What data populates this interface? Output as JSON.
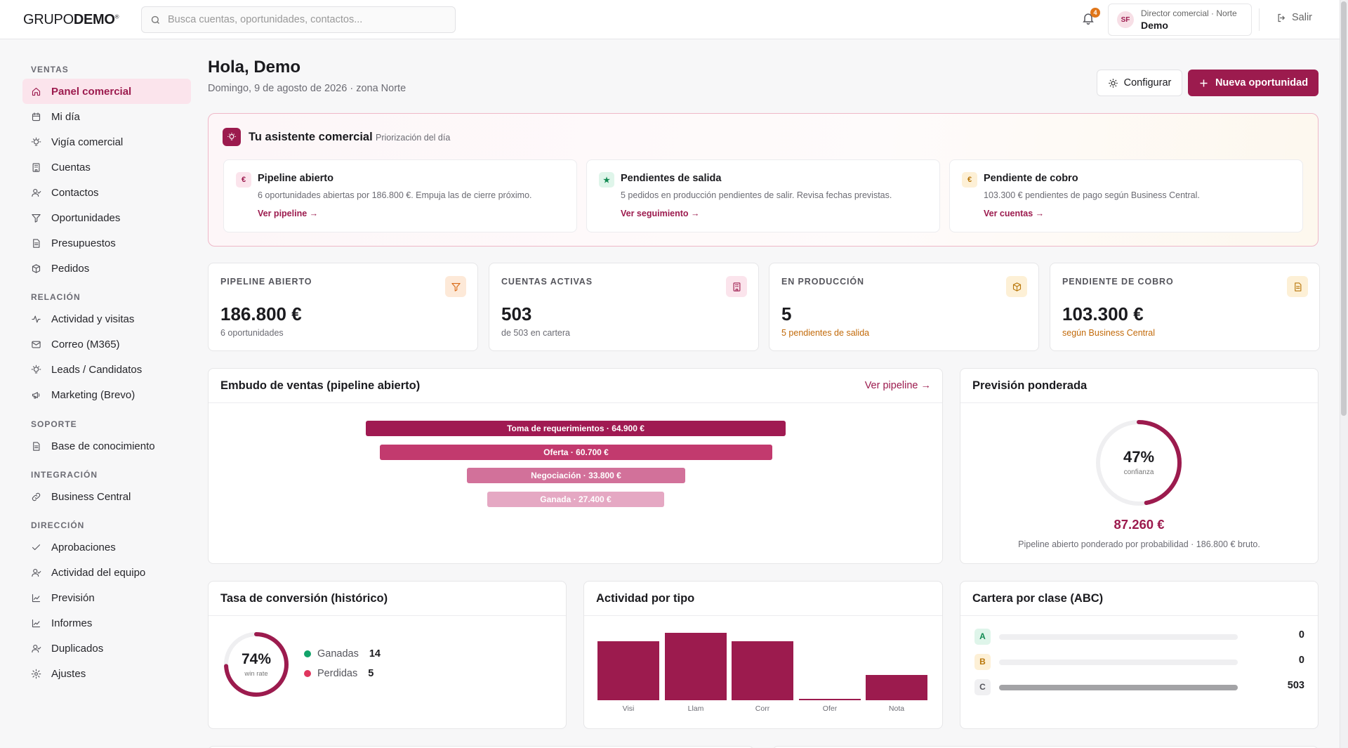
{
  "header": {
    "logo_light": "GRUPO",
    "logo_bold": "DEMO",
    "logo_mark": "®",
    "search_placeholder": "Busca cuentas, oportunidades, contactos...",
    "notifications_count": "4",
    "user_initials": "SF",
    "user_role": "Director comercial · Norte",
    "user_name": "Demo",
    "logout_label": "Salir"
  },
  "sidebar": {
    "sections": [
      {
        "title": "VENTAS",
        "items": [
          {
            "label": "Panel comercial",
            "icon": "home-icon",
            "active": true
          },
          {
            "label": "Mi día",
            "icon": "calendar-icon"
          },
          {
            "label": "Vigía comercial",
            "icon": "lightbulb-icon"
          },
          {
            "label": "Cuentas",
            "icon": "building-icon"
          },
          {
            "label": "Contactos",
            "icon": "user-icon"
          },
          {
            "label": "Oportunidades",
            "icon": "filter-icon"
          },
          {
            "label": "Presupuestos",
            "icon": "document-icon"
          },
          {
            "label": "Pedidos",
            "icon": "box-icon"
          }
        ]
      },
      {
        "title": "RELACIÓN",
        "items": [
          {
            "label": "Actividad y visitas",
            "icon": "activity-icon"
          },
          {
            "label": "Correo (M365)",
            "icon": "mail-icon"
          },
          {
            "label": "Leads / Candidatos",
            "icon": "lightbulb-icon"
          },
          {
            "label": "Marketing (Brevo)",
            "icon": "megaphone-icon"
          }
        ]
      },
      {
        "title": "SOPORTE",
        "items": [
          {
            "label": "Base de conocimiento",
            "icon": "document-icon"
          }
        ]
      },
      {
        "title": "INTEGRACIÓN",
        "items": [
          {
            "label": "Business Central",
            "icon": "link-icon"
          }
        ]
      },
      {
        "title": "DIRECCIÓN",
        "items": [
          {
            "label": "Aprobaciones",
            "icon": "check-icon"
          },
          {
            "label": "Actividad del equipo",
            "icon": "user-icon"
          },
          {
            "label": "Previsión",
            "icon": "chart-line-icon"
          },
          {
            "label": "Informes",
            "icon": "chart-line-icon"
          },
          {
            "label": "Duplicados",
            "icon": "user-icon"
          },
          {
            "label": "Ajustes",
            "icon": "gear-icon"
          }
        ]
      }
    ]
  },
  "page": {
    "greeting": "Hola, Demo",
    "date_line": "Domingo, 9 de agosto de 2026 · zona Norte",
    "configure_label": "Configurar",
    "new_opportunity_label": "Nueva oportunidad"
  },
  "assistant": {
    "title": "Tu asistente comercial",
    "subtitle": "Priorización del día",
    "cards": [
      {
        "icon_char": "€",
        "title": "Pipeline abierto",
        "desc": "6 oportunidades abiertas por 186.800 €. Empuja las de cierre próximo.",
        "link": "Ver pipeline →",
        "bg": "#fbe4ec",
        "fg": "#9c1b4e"
      },
      {
        "icon_char": "★",
        "title": "Pendientes de salida",
        "desc": "5 pedidos en producción pendientes de salir. Revisa fechas previstas.",
        "link": "Ver seguimiento →",
        "bg": "#dff5ea",
        "fg": "#128a52"
      },
      {
        "icon_char": "€",
        "title": "Pendiente de cobro",
        "desc": "103.300 € pendientes de pago según Business Central.",
        "link": "Ver cuentas →",
        "bg": "#fdf0d6",
        "fg": "#b8760a"
      }
    ]
  },
  "kpis": [
    {
      "label": "PIPELINE ABIERTO",
      "value": "186.800 €",
      "sub": "6 oportunidades",
      "icon": "filter-icon",
      "bg": "#fde9d8",
      "fg": "#d96a17",
      "warn": false
    },
    {
      "label": "CUENTAS ACTIVAS",
      "value": "503",
      "sub": "de 503 en cartera",
      "icon": "building-icon",
      "bg": "#fbe4ec",
      "fg": "#9c1b4e",
      "warn": false
    },
    {
      "label": "EN PRODUCCIÓN",
      "value": "5",
      "sub": "5 pendientes de salida",
      "icon": "box-icon",
      "bg": "#fdf0d6",
      "fg": "#b8760a",
      "warn": true
    },
    {
      "label": "PENDIENTE DE COBRO",
      "value": "103.300 €",
      "sub": "según Business Central",
      "icon": "document-icon",
      "bg": "#fdf0d6",
      "fg": "#b8760a",
      "warn": true
    }
  ],
  "funnel": {
    "title": "Embudo de ventas (pipeline abierto)",
    "link": "Ver pipeline →",
    "chart_data": {
      "type": "bar",
      "categories": [
        "Toma de requerimientos",
        "Oferta",
        "Negociación",
        "Ganada"
      ],
      "values": [
        64900,
        60700,
        33800,
        27400
      ],
      "labels": [
        "Toma de requerimientos · 64.900 €",
        "Oferta · 60.700 €",
        "Negociación · 33.800 €",
        "Ganada · 27.400 €"
      ],
      "colors": [
        "#a01a52",
        "#c23a6e",
        "#d2719a",
        "#e5a8c3"
      ]
    }
  },
  "forecast": {
    "title": "Previsión ponderada",
    "percent": 47,
    "percent_text": "47%",
    "ring_label": "confianza",
    "amount": "87.260 €",
    "note": "Pipeline abierto ponderado por probabilidad · 186.800 € bruto."
  },
  "conversion": {
    "title": "Tasa de conversión (histórico)",
    "rate": 74,
    "rate_text": "74%",
    "ring_label": "win rate",
    "won_label": "Ganadas",
    "won_value": "14",
    "lost_label": "Perdidas",
    "lost_value": "5"
  },
  "activity": {
    "title": "Actividad por tipo",
    "chart_data": {
      "type": "bar",
      "categories": [
        "Visi",
        "Llam",
        "Corr",
        "Ofer",
        "Nota"
      ],
      "values": [
        7,
        8,
        7,
        0.2,
        3
      ],
      "ylim": [
        0,
        8
      ]
    }
  },
  "abc": {
    "title": "Cartera por clase (ABC)",
    "rows": [
      {
        "label": "A",
        "count": "0",
        "share": 0,
        "bg": "#dff5ea",
        "fg": "#128a52"
      },
      {
        "label": "B",
        "count": "0",
        "share": 0,
        "bg": "#fdf0d6",
        "fg": "#b8760a"
      },
      {
        "label": "C",
        "count": "503",
        "share": 1,
        "bg": "#f0f0f2",
        "fg": "#55555c"
      }
    ]
  },
  "colors": {
    "accent": "#9c1b4e",
    "won": "#12a36a",
    "lost": "#e0365e"
  }
}
